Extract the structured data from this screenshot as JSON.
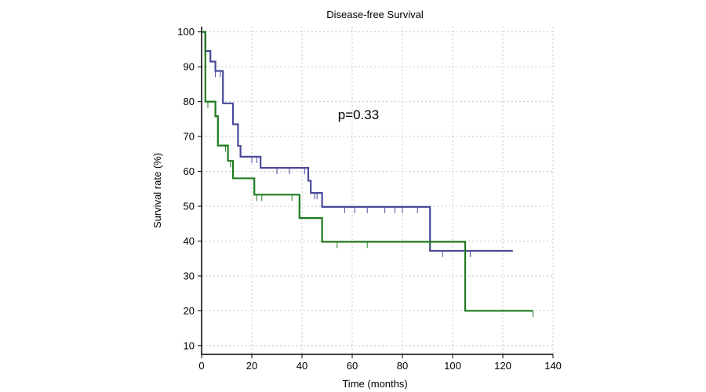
{
  "chart_data": {
    "type": "line",
    "subtype": "kaplan-meier",
    "title": "Disease-free Survival",
    "xlabel": "Time (months)",
    "ylabel": "Survival rate (%)",
    "xlim": [
      0,
      140
    ],
    "ylim": [
      10,
      100
    ],
    "xticks": [
      0,
      20,
      40,
      60,
      80,
      100,
      120,
      140
    ],
    "yticks": [
      10,
      20,
      30,
      40,
      50,
      60,
      70,
      80,
      90,
      100
    ],
    "grid": true,
    "annotation": "p=0.33",
    "series": [
      {
        "color": "#4a4a9c",
        "steps": [
          {
            "x": 0,
            "y": 100
          },
          {
            "x": 1.5,
            "y": 94.5
          },
          {
            "x": 3.5,
            "y": 91.5
          },
          {
            "x": 5.5,
            "y": 88.8
          },
          {
            "x": 8.5,
            "y": 79.5
          },
          {
            "x": 12.5,
            "y": 73.5
          },
          {
            "x": 14.5,
            "y": 67.3
          },
          {
            "x": 15.5,
            "y": 64.2
          },
          {
            "x": 23.5,
            "y": 61
          },
          {
            "x": 42.5,
            "y": 57.3
          },
          {
            "x": 43.5,
            "y": 53.8
          },
          {
            "x": 48,
            "y": 49.8
          },
          {
            "x": 91,
            "y": 37.2
          }
        ],
        "end_x": 124,
        "censored": [
          {
            "x": 5.5,
            "y": 88.8
          },
          {
            "x": 7.5,
            "y": 88.8
          },
          {
            "x": 20,
            "y": 64.2
          },
          {
            "x": 22,
            "y": 64.2
          },
          {
            "x": 30,
            "y": 61
          },
          {
            "x": 35,
            "y": 61
          },
          {
            "x": 41,
            "y": 61
          },
          {
            "x": 45,
            "y": 53.8
          },
          {
            "x": 46,
            "y": 53.8
          },
          {
            "x": 57,
            "y": 49.8
          },
          {
            "x": 61,
            "y": 49.8
          },
          {
            "x": 66,
            "y": 49.8
          },
          {
            "x": 73,
            "y": 49.8
          },
          {
            "x": 77,
            "y": 49.8
          },
          {
            "x": 80,
            "y": 49.8
          },
          {
            "x": 86,
            "y": 49.8
          },
          {
            "x": 96,
            "y": 37.2
          },
          {
            "x": 107,
            "y": 37.2
          }
        ]
      },
      {
        "color": "#1e7a1e",
        "steps": [
          {
            "x": 0,
            "y": 100
          },
          {
            "x": 1.5,
            "y": 80
          },
          {
            "x": 5.5,
            "y": 75.8
          },
          {
            "x": 6.5,
            "y": 67.4
          },
          {
            "x": 10.5,
            "y": 63
          },
          {
            "x": 12.5,
            "y": 58
          },
          {
            "x": 21,
            "y": 53.3
          },
          {
            "x": 39,
            "y": 46.6
          },
          {
            "x": 48,
            "y": 39.8
          },
          {
            "x": 105,
            "y": 20
          }
        ],
        "end_x": 132,
        "censored": [
          {
            "x": 2.5,
            "y": 80
          },
          {
            "x": 9.5,
            "y": 67.4
          },
          {
            "x": 11.5,
            "y": 63
          },
          {
            "x": 22,
            "y": 53.3
          },
          {
            "x": 24,
            "y": 53.3
          },
          {
            "x": 36,
            "y": 53.3
          },
          {
            "x": 54,
            "y": 39.8
          },
          {
            "x": 66,
            "y": 39.8
          },
          {
            "x": 91,
            "y": 39.8
          },
          {
            "x": 132,
            "y": 20
          }
        ]
      }
    ]
  }
}
